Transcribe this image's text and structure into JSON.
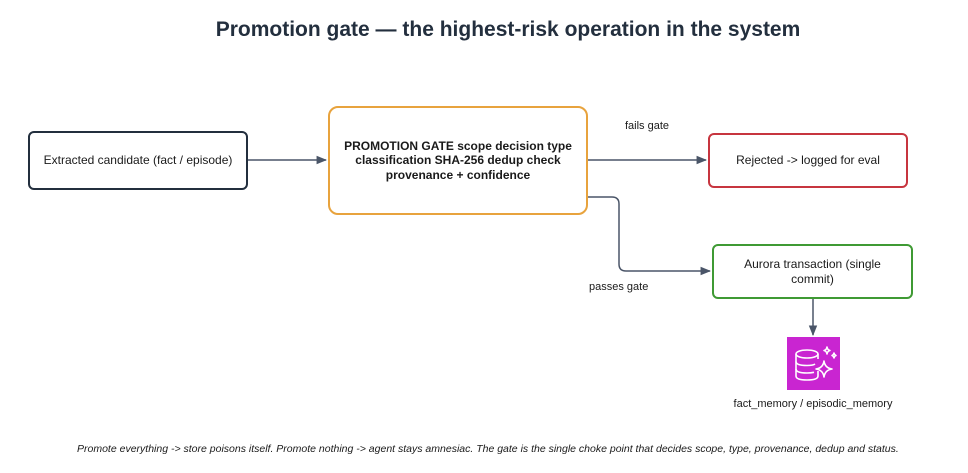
{
  "title": "Promotion gate — the highest-risk operation in the system",
  "nodes": {
    "candidate": "Extracted candidate (fact / episode)",
    "gate": "PROMOTION GATE scope decision type classification SHA-256 dedup check provenance + confidence",
    "rejected": "Rejected -> logged for eval",
    "aurora": "Aurora transaction (single commit)",
    "memory_store": "fact_memory / episodic_memory"
  },
  "edges": {
    "fails_label": "fails gate",
    "passes_label": "passes gate"
  },
  "icons": {
    "memory_store_icon": "database-sparkle-icon"
  },
  "colors": {
    "candidate_border": "#232f3e",
    "gate_border": "#e8a33d",
    "rejected_border": "#c7353f",
    "aurora_border": "#3f9a34",
    "database_icon": "#c925d1",
    "edge": "#4a5568"
  },
  "footnote": "Promote everything -> store poisons itself. Promote nothing -> agent stays amnesiac. The gate is the single choke point that decides scope, type, provenance, dedup and status."
}
